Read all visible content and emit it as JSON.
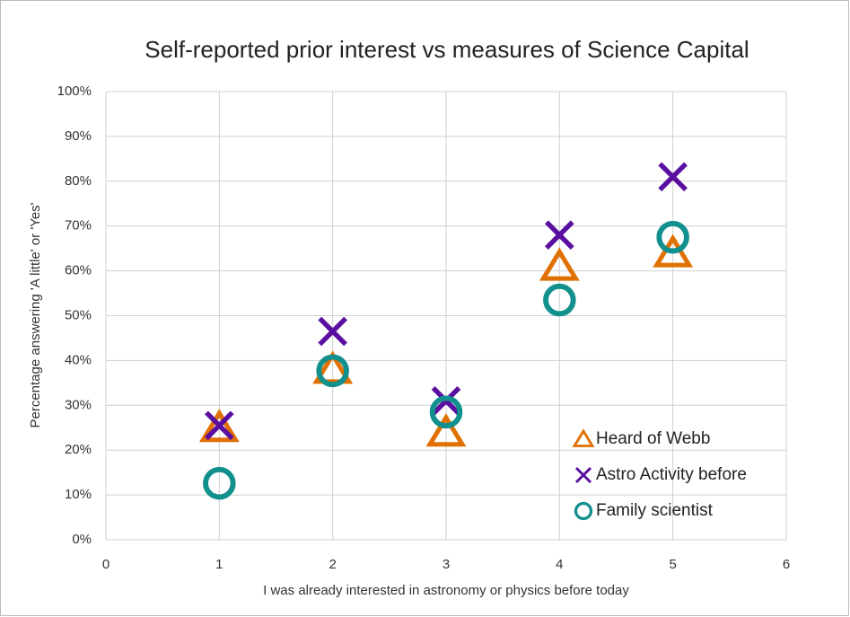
{
  "chart_data": {
    "type": "scatter",
    "title": "Self-reported prior interest vs measures of Science Capital",
    "xlabel": "I was already interested in astronomy or physics before today",
    "ylabel": "Percentage answering 'A little' or 'Yes'",
    "x": [
      1,
      2,
      3,
      4,
      5
    ],
    "series": [
      {
        "name": "Heard of Webb",
        "color": "#e07000",
        "marker": "triangle",
        "values": [
          25,
          38,
          24,
          61,
          64
        ]
      },
      {
        "name": "Astro Activity before",
        "color": "#5a0fa0",
        "marker": "x",
        "values": [
          25.5,
          46.5,
          31,
          68,
          81
        ]
      },
      {
        "name": "Family scientist",
        "color": "#12908e",
        "marker": "circle",
        "values": [
          12.6,
          37.7,
          28.5,
          53.5,
          67.5
        ]
      }
    ],
    "xlim": [
      0,
      6
    ],
    "xticks": [
      0,
      1,
      2,
      3,
      4,
      5,
      6
    ],
    "ylim": [
      0,
      100
    ],
    "yticks": [
      {
        "value": 0,
        "label": "0%"
      },
      {
        "value": 10,
        "label": "10%"
      },
      {
        "value": 20,
        "label": "20%"
      },
      {
        "value": 30,
        "label": "30%"
      },
      {
        "value": 40,
        "label": "40%"
      },
      {
        "value": 50,
        "label": "50%"
      },
      {
        "value": 60,
        "label": "60%"
      },
      {
        "value": 70,
        "label": "70%"
      },
      {
        "value": 80,
        "label": "80%"
      },
      {
        "value": 90,
        "label": "90%"
      },
      {
        "value": 100,
        "label": "100%"
      }
    ],
    "grid": true,
    "legend": "lower right"
  }
}
